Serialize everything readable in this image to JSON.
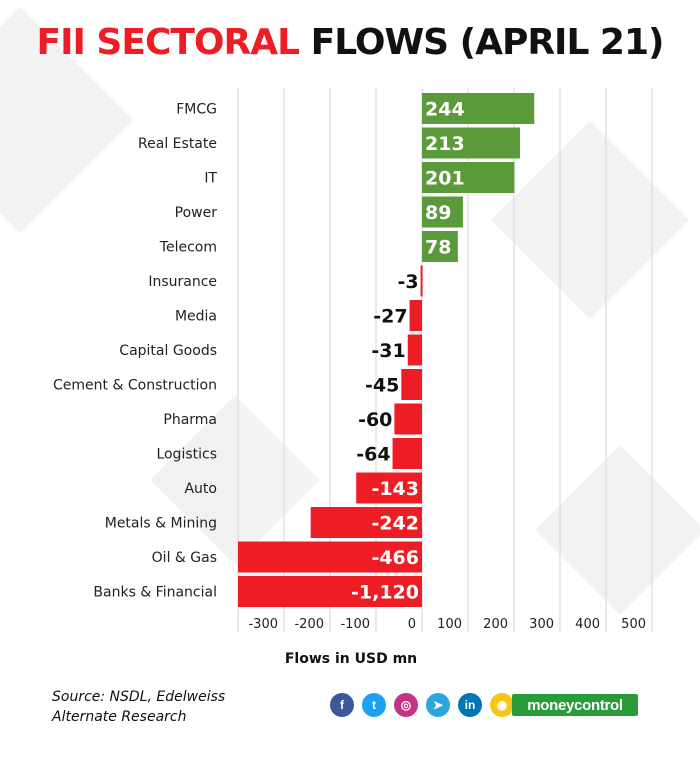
{
  "title": {
    "part1": "FII SECTORAL",
    "part2": "FLOWS (APRIL 21)"
  },
  "colors": {
    "positive": "#5a9a3a",
    "negative": "#ee1c25",
    "accent_red": "#ee1c25",
    "grid": "#d6d6d6"
  },
  "chart_data": {
    "type": "bar",
    "orientation": "horizontal",
    "title": "FII SECTORAL FLOWS (APRIL 21)",
    "xlabel": "Flows in USD mn",
    "ylabel": "",
    "categories": [
      "FMCG",
      "Real Estate",
      "IT",
      "Power",
      "Telecom",
      "Insurance",
      "Media",
      "Capital Goods",
      "Cement & Construction",
      "Pharma",
      "Logistics",
      "Auto",
      "Metals & Mining",
      "Oil & Gas",
      "Banks & Financial"
    ],
    "values": [
      244,
      213,
      201,
      89,
      78,
      -3,
      -27,
      -31,
      -45,
      -60,
      -64,
      -143,
      -242,
      -466,
      -1120
    ],
    "value_labels": [
      "244",
      "213",
      "201",
      "89",
      "78",
      "-3",
      "-27",
      "-31",
      "-45",
      "-60",
      "-64",
      "-143",
      "-242",
      "-466",
      "-1,120"
    ],
    "xticks": [
      -300,
      -200,
      -100,
      0,
      100,
      200,
      300,
      400,
      500
    ],
    "xtick_labels": [
      "-300",
      "-200",
      "-100",
      "0",
      "100",
      "200",
      "300",
      "400",
      "500"
    ],
    "xlim": [
      -400,
      500
    ],
    "grid": true
  },
  "source": {
    "line1": "Source: NSDL, Edelweiss",
    "line2": "Alternate Research"
  },
  "social": [
    {
      "name": "facebook-icon",
      "glyph": "f",
      "color": "#3b5998"
    },
    {
      "name": "twitter-icon",
      "glyph": "t",
      "color": "#1da1f2"
    },
    {
      "name": "instagram-icon",
      "glyph": "◎",
      "color": "#c13584"
    },
    {
      "name": "telegram-icon",
      "glyph": "➤",
      "color": "#2ca5e0"
    },
    {
      "name": "linkedin-icon",
      "glyph": "in",
      "color": "#0077b5"
    },
    {
      "name": "koo-icon",
      "glyph": "◉",
      "color": "#f5c518"
    }
  ],
  "brand": {
    "logo_text": "moneycontrol"
  }
}
